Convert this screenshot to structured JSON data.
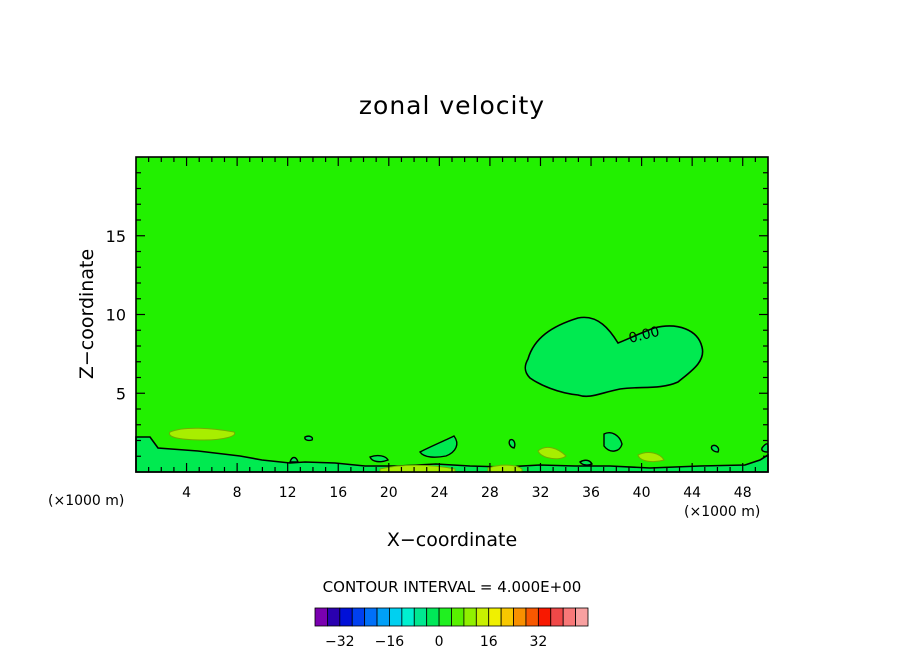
{
  "chart_data": {
    "type": "contour",
    "title": "zonal velocity",
    "xlabel": "X−coordinate",
    "ylabel": "Z−coordinate",
    "x_unit_left": "(×1000 m)",
    "x_unit_right": "(×1000 m)",
    "xlim": [
      0,
      50
    ],
    "ylim": [
      0,
      20
    ],
    "x_ticks": [
      4,
      8,
      12,
      16,
      20,
      24,
      28,
      32,
      36,
      40,
      44,
      48
    ],
    "x_tick_labels": [
      "4",
      "8",
      "12",
      "16",
      "20",
      "24",
      "28",
      "32",
      "36",
      "40",
      "44",
      "48"
    ],
    "y_ticks": [
      5,
      10,
      15
    ],
    "y_tick_labels": [
      "5",
      "10",
      "15"
    ],
    "contour_label": "0.00",
    "contour_interval_text": "CONTOUR INTERVAL = 4.000E+00",
    "colorbar": {
      "colors": [
        "#7a00b0",
        "#2a00b0",
        "#0010d8",
        "#0040f0",
        "#0070f8",
        "#00a0f8",
        "#00d0f0",
        "#00f0d0",
        "#00e890",
        "#00e858",
        "#20f020",
        "#58f000",
        "#90f000",
        "#c8f000",
        "#f0f000",
        "#f8c800",
        "#f89000",
        "#f85800",
        "#f81800",
        "#f04848",
        "#f87878",
        "#f8a0a0"
      ],
      "tick_labels": [
        "−32",
        "−16",
        "0",
        "16",
        "32"
      ]
    },
    "background_color": "#22f000"
  }
}
